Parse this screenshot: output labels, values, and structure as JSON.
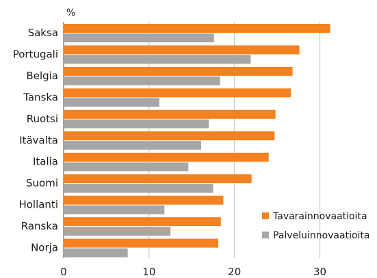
{
  "chart_data": {
    "type": "bar",
    "orientation": "horizontal",
    "unit_label": "%",
    "categories": [
      "Saksa",
      "Portugali",
      "Belgia",
      "Tanska",
      "Ruotsi",
      "Itävalta",
      "Italia",
      "Suomi",
      "Hollanti",
      "Ranska",
      "Norja"
    ],
    "series": [
      {
        "name": "Tavarainnovaatioita",
        "color": "#f58220",
        "values": [
          31.2,
          27.6,
          26.8,
          26.6,
          24.8,
          24.7,
          24.0,
          22.0,
          18.7,
          18.4,
          18.1
        ]
      },
      {
        "name": "Palveluinnovaatioita",
        "color": "#a6a6a6",
        "values": [
          17.6,
          21.9,
          18.3,
          11.2,
          17.0,
          16.1,
          14.6,
          17.5,
          11.8,
          12.5,
          7.5
        ]
      }
    ],
    "xlim": [
      0,
      35
    ],
    "xticks": [
      0,
      10,
      20,
      30
    ],
    "grid": true,
    "legend_position": "bottom-right"
  }
}
